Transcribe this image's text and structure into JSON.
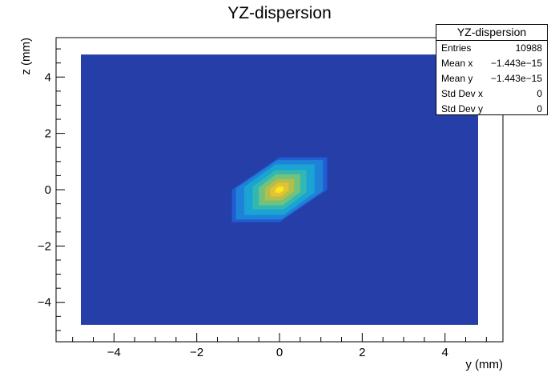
{
  "chart_data": {
    "type": "heatmap",
    "title": "YZ-dispersion",
    "xlabel": "y (mm)",
    "ylabel": "z (mm)",
    "xlim": [
      -5.4,
      5.4
    ],
    "ylim": [
      -5.4,
      5.4
    ],
    "data_extent": {
      "x": [
        -4.8,
        4.8
      ],
      "y": [
        -4.8,
        4.8
      ]
    },
    "background_value": 0,
    "x_ticks": [
      -4,
      -2,
      0,
      2,
      4
    ],
    "y_ticks": [
      -4,
      -2,
      0,
      2,
      4
    ],
    "x_tick_labels": [
      "−4",
      "−2",
      "0",
      "2",
      "4"
    ],
    "y_tick_labels": [
      "−4",
      "−2",
      "0",
      "2",
      "4"
    ],
    "contour_levels": [
      {
        "level": 1,
        "color": "#1f5ed2",
        "points": [
          [
            -1.15,
            -1.15
          ],
          [
            0.0,
            -1.15
          ],
          [
            1.15,
            -0.0
          ],
          [
            1.15,
            1.15
          ],
          [
            0.0,
            1.15
          ],
          [
            -1.15,
            0.0
          ]
        ]
      },
      {
        "level": 2,
        "color": "#1e83d8",
        "points": [
          [
            -1.05,
            -1.05
          ],
          [
            0.05,
            -1.05
          ],
          [
            1.05,
            -0.05
          ],
          [
            1.05,
            1.05
          ],
          [
            -0.05,
            1.05
          ],
          [
            -1.05,
            0.05
          ]
        ]
      },
      {
        "level": 3,
        "color": "#1aa3d3",
        "points": [
          [
            -0.85,
            -0.9
          ],
          [
            0.1,
            -0.9
          ],
          [
            0.85,
            -0.1
          ],
          [
            0.85,
            0.9
          ],
          [
            -0.1,
            0.9
          ],
          [
            -0.85,
            0.1
          ]
        ]
      },
      {
        "level": 4,
        "color": "#32b8b2",
        "points": [
          [
            -0.65,
            -0.7
          ],
          [
            0.1,
            -0.7
          ],
          [
            0.65,
            -0.1
          ],
          [
            0.65,
            0.7
          ],
          [
            -0.1,
            0.7
          ],
          [
            -0.65,
            0.1
          ]
        ]
      },
      {
        "level": 5,
        "color": "#72c27c",
        "points": [
          [
            -0.5,
            -0.55
          ],
          [
            0.08,
            -0.55
          ],
          [
            0.5,
            -0.08
          ],
          [
            0.5,
            0.55
          ],
          [
            -0.08,
            0.55
          ],
          [
            -0.5,
            0.08
          ]
        ]
      },
      {
        "level": 6,
        "color": "#b3bf4a",
        "points": [
          [
            -0.35,
            -0.38
          ],
          [
            0.06,
            -0.38
          ],
          [
            0.35,
            -0.06
          ],
          [
            0.35,
            0.38
          ],
          [
            -0.06,
            0.38
          ],
          [
            -0.35,
            0.06
          ]
        ]
      },
      {
        "level": 7,
        "color": "#e4c235",
        "points": [
          [
            -0.22,
            -0.24
          ],
          [
            0.04,
            -0.24
          ],
          [
            0.22,
            -0.04
          ],
          [
            0.22,
            0.24
          ],
          [
            -0.04,
            0.24
          ],
          [
            -0.22,
            0.04
          ]
        ]
      },
      {
        "level": 8,
        "color": "#f9ea18",
        "points": [
          [
            -0.1,
            -0.11
          ],
          [
            0.02,
            -0.11
          ],
          [
            0.1,
            -0.02
          ],
          [
            0.1,
            0.11
          ],
          [
            -0.02,
            0.11
          ],
          [
            -0.1,
            0.02
          ]
        ]
      }
    ],
    "stats_box": {
      "title": "YZ-dispersion",
      "rows": [
        {
          "label": "Entries",
          "value": "10988"
        },
        {
          "label": "Mean x",
          "value": "−1.443e−15"
        },
        {
          "label": "Mean y",
          "value": "−1.443e−15"
        },
        {
          "label": "Std Dev x",
          "value": "0"
        },
        {
          "label": "Std Dev y",
          "value": "0"
        }
      ]
    }
  },
  "colors": {
    "background_fill": "#263ea8",
    "frame": "#000000",
    "text": "#000000"
  }
}
